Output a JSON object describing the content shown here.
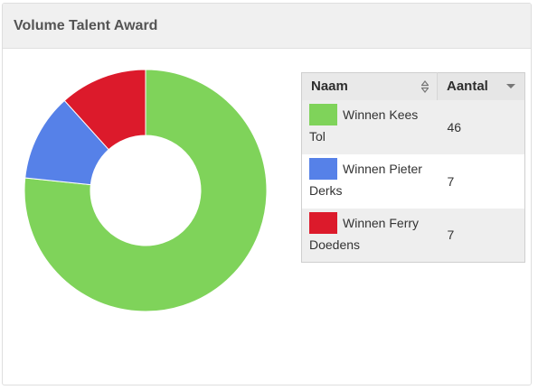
{
  "panel": {
    "title": "Volume Talent Award"
  },
  "table": {
    "headers": {
      "name": "Naam",
      "count": "Aantal"
    },
    "rows": [
      {
        "label": "Winnen Kees Tol",
        "count": "46",
        "color": "#7fd35a"
      },
      {
        "label": "Winnen Pieter Derks",
        "count": "7",
        "color": "#5681e8"
      },
      {
        "label": "Winnen Ferry Doedens",
        "count": "7",
        "color": "#dc1a2b"
      }
    ]
  },
  "chart_data": {
    "type": "pie",
    "donut": true,
    "title": "",
    "categories": [
      "Winnen Kees Tol",
      "Winnen Pieter Derks",
      "Winnen Ferry Doedens"
    ],
    "values": [
      46,
      7,
      7
    ],
    "colors": [
      "#7fd35a",
      "#5681e8",
      "#dc1a2b"
    ],
    "start": "top",
    "direction": "clockwise",
    "legend": "right"
  }
}
